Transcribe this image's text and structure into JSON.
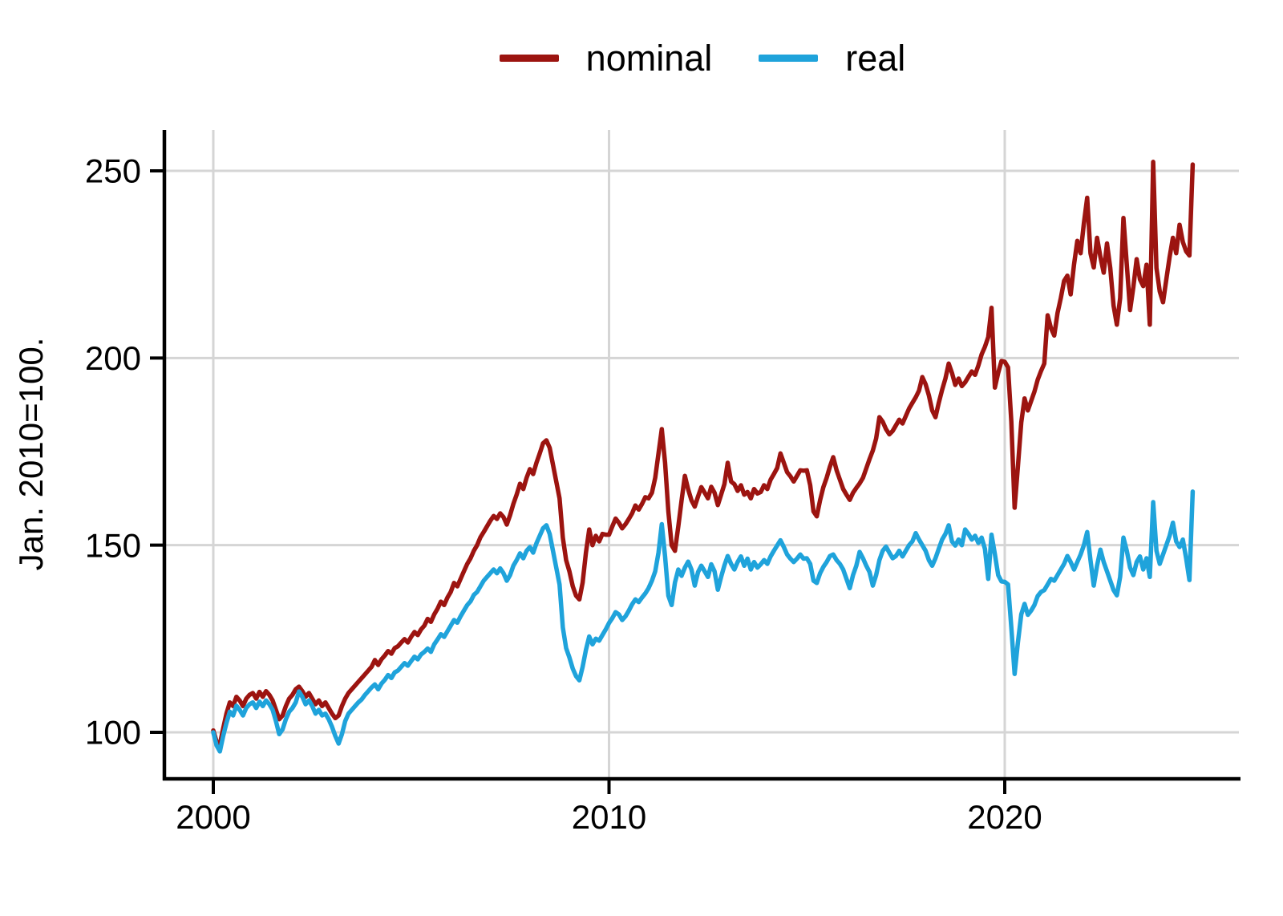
{
  "y_axis": {
    "title": "Jan. 2010=100.",
    "ticks": [
      100,
      150,
      200,
      250
    ]
  },
  "x_axis": {
    "ticks": [
      2000,
      2010,
      2020
    ]
  },
  "legend": [
    {
      "label": "nominal",
      "color": "#9C1410"
    },
    {
      "label": "real",
      "color": "#1FA3DB"
    }
  ],
  "colors": {
    "nominal": "#9C1410",
    "real": "#1FA3DB",
    "gridline": "#D5D5D5",
    "axis": "#000000",
    "background": "#FFFFFF"
  },
  "chart_data": {
    "type": "line",
    "title": "",
    "xlabel": "",
    "ylabel": "Jan. 2010=100.",
    "x_start": 2000.0,
    "x_step_years": 0.0833333,
    "frequency": "monthly",
    "x_end_label": "2024-10",
    "xlim": [
      1998.8,
      2025.9
    ],
    "ylim": [
      88,
      261
    ],
    "yticks": [
      100,
      150,
      200,
      250
    ],
    "xticks": [
      2000,
      2010,
      2020
    ],
    "grid": true,
    "legend_position": "top-center",
    "series": [
      {
        "name": "nominal",
        "color": "#9C1410",
        "values": [
          100.5,
          97.5,
          96.8,
          101,
          105,
          108,
          107,
          109.5,
          108.5,
          107,
          109,
          110,
          110.5,
          109,
          110.8,
          109.5,
          111,
          110,
          108.5,
          106,
          103.5,
          104.5,
          107,
          109,
          110,
          111.5,
          112.2,
          111,
          109.5,
          110.5,
          109,
          107.5,
          108.5,
          107,
          108,
          106.5,
          105,
          103.8,
          104.5,
          107,
          109,
          110.5,
          111.5,
          112.5,
          113.5,
          114.5,
          115.5,
          116.5,
          117.5,
          119.3,
          118,
          119.5,
          120.5,
          121.7,
          121,
          122.5,
          123,
          124,
          124.9,
          124,
          125.5,
          126.8,
          126,
          127.5,
          128.5,
          130.3,
          129.5,
          131.5,
          133,
          134.9,
          134,
          136,
          137.5,
          139.9,
          139,
          141,
          143,
          145,
          146.5,
          148.5,
          150,
          152.1,
          153.5,
          155,
          156.5,
          157.8,
          157,
          158.5,
          157.5,
          155.5,
          158,
          161,
          163.5,
          166.4,
          165,
          168,
          170.3,
          169,
          172,
          174.5,
          177.2,
          178,
          176,
          171.5,
          167,
          162.5,
          152,
          146,
          143,
          139,
          136.5,
          135.5,
          140,
          148,
          154.2,
          150,
          152.5,
          151,
          153,
          152.8,
          152.8,
          155,
          157.1,
          156,
          154.5,
          155.6,
          157,
          158.5,
          160.6,
          159.5,
          161,
          162.8,
          162.5,
          164,
          168,
          174.5,
          181,
          172,
          159,
          150,
          148.5,
          155,
          162,
          168.5,
          164.9,
          162,
          160.3,
          163,
          165.5,
          164,
          162.5,
          165.6,
          164,
          160.7,
          163.5,
          166.3,
          172,
          167,
          166.3,
          164.5,
          166,
          163.5,
          164.2,
          162.5,
          165,
          163.8,
          164.2,
          166,
          165,
          167.5,
          169,
          170.6,
          174.5,
          172,
          169.5,
          168.4,
          167,
          168.5,
          170,
          169.9,
          170,
          166,
          159,
          157.7,
          162,
          165.5,
          168,
          171,
          173.5,
          170,
          167.5,
          165,
          163.5,
          162.1,
          164,
          165.3,
          166.5,
          168,
          170.5,
          173,
          175.3,
          178.5,
          184.2,
          183,
          181,
          179.6,
          180.5,
          182,
          183.5,
          182.5,
          184.5,
          186.5,
          188,
          189.5,
          191.3,
          194.9,
          193,
          190,
          186,
          184.2,
          188,
          191.5,
          194.5,
          198.5,
          196,
          192.8,
          194.5,
          192.5,
          193.5,
          195,
          196.4,
          195.5,
          198,
          201,
          203,
          205.6,
          213.4,
          192.1,
          196,
          199.2,
          199,
          197.5,
          183,
          160,
          171,
          182.8,
          189.2,
          186,
          188.5,
          191,
          194.2,
          196.5,
          198.5,
          211.4,
          208,
          206,
          212,
          216,
          220.6,
          222,
          217,
          225,
          231.3,
          228,
          236,
          242.8,
          228,
          224.2,
          232.1,
          227,
          222.8,
          230.6,
          224,
          214,
          208.9,
          216,
          237.4,
          225,
          212.8,
          219,
          226.4,
          221,
          219.2,
          224.9,
          208.9,
          252.4,
          224,
          217.8,
          214.9,
          221,
          227,
          232.1,
          228,
          235.6,
          231,
          228.5,
          227.4,
          251.7
        ]
      },
      {
        "name": "real",
        "color": "#1FA3DB",
        "values": [
          100,
          96.5,
          94.9,
          99,
          102.5,
          105.5,
          104.5,
          107.1,
          106,
          104.5,
          106.5,
          107.5,
          108,
          106.5,
          108.2,
          107,
          108.5,
          107.5,
          106,
          103,
          99.5,
          100.8,
          103.5,
          105.5,
          106.5,
          108,
          110.9,
          109.5,
          107.5,
          108.5,
          107,
          105,
          106,
          104.5,
          105,
          103.5,
          101.5,
          99,
          97,
          99.5,
          103,
          105,
          106,
          107,
          108,
          108.8,
          110,
          111,
          112,
          112.8,
          111.5,
          113,
          114,
          115.3,
          114.5,
          116,
          116.5,
          117.5,
          118.5,
          117.8,
          119,
          120.2,
          119.5,
          120.8,
          121.5,
          122.4,
          121.5,
          123.5,
          124.8,
          126.2,
          125.5,
          127,
          128.5,
          130,
          129.3,
          131,
          132.5,
          134,
          135,
          136.7,
          137.5,
          139,
          140.5,
          141.5,
          142.5,
          143.5,
          142.5,
          143.8,
          142.5,
          140.5,
          142,
          144.5,
          146,
          147.8,
          146.5,
          148.5,
          149.5,
          148,
          150.5,
          152.5,
          154.5,
          155.3,
          153,
          148.5,
          144,
          139.5,
          128,
          122.5,
          120,
          117,
          115,
          113.9,
          117.5,
          122,
          125.6,
          123.5,
          125,
          124.5,
          126,
          127.5,
          129.2,
          130.5,
          132.1,
          131.5,
          130,
          131,
          132.5,
          134.2,
          135.5,
          134.8,
          136,
          137.1,
          138.5,
          140.5,
          143,
          148,
          155.6,
          147,
          136.5,
          134,
          140,
          143.5,
          141.8,
          144,
          145.6,
          143.5,
          139.2,
          142.8,
          144.5,
          143,
          141.5,
          144.9,
          143,
          138.1,
          141.5,
          144.6,
          147.1,
          145,
          143.5,
          145.5,
          147,
          144.5,
          146.4,
          143.5,
          145.5,
          144,
          144.9,
          146,
          145,
          147,
          148.5,
          149.9,
          151.3,
          149.5,
          147.5,
          146.4,
          145.5,
          146.4,
          147.5,
          146.4,
          146.5,
          145,
          140.5,
          139.9,
          142.5,
          144.2,
          145.5,
          147.1,
          147.5,
          146,
          145,
          143.5,
          141,
          138.5,
          142,
          144.5,
          148.2,
          146.5,
          144.5,
          142.8,
          139.2,
          142,
          146,
          148.5,
          149.6,
          148,
          146.5,
          147.1,
          148.5,
          147,
          148.5,
          150,
          151,
          153.2,
          151.5,
          150,
          148.5,
          146,
          144.5,
          146.5,
          149,
          151.5,
          153,
          155.3,
          151,
          149.9,
          151.5,
          150,
          154.2,
          153,
          151.5,
          152.5,
          150.6,
          152,
          149,
          141,
          152.8,
          147.6,
          142,
          140.3,
          140.2,
          139.5,
          128,
          115.6,
          124,
          131.5,
          134.3,
          131.4,
          132.5,
          134,
          136.4,
          137.5,
          138,
          139.5,
          141,
          140.5,
          142,
          143.5,
          145,
          147.1,
          145.5,
          143.5,
          145.5,
          147.5,
          150,
          153.5,
          146,
          139.2,
          144.5,
          148.8,
          145.5,
          143,
          140.5,
          138,
          136.6,
          141.5,
          152,
          148.5,
          144,
          142,
          145.5,
          147,
          143.5,
          146.5,
          141.5,
          161.5,
          148.5,
          145,
          147.5,
          150,
          152.5,
          156,
          151,
          149.5,
          151.5,
          146.5,
          140.7,
          164.3
        ]
      }
    ]
  }
}
